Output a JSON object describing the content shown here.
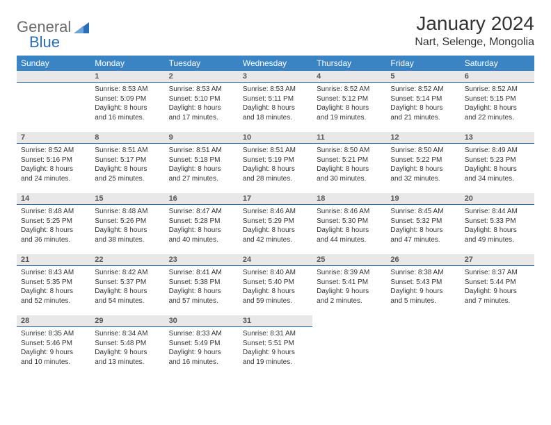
{
  "logo": {
    "text1": "General",
    "text2": "Blue"
  },
  "title": "January 2024",
  "location": "Nart, Selenge, Mongolia",
  "colors": {
    "header_bg": "#3a84c4",
    "header_text": "#ffffff",
    "daynum_bg": "#e8e8e8",
    "daynum_border": "#2a6db8",
    "body_text": "#333333",
    "logo_gray": "#6b6b6b",
    "logo_blue": "#2a6db8"
  },
  "weekdays": [
    "Sunday",
    "Monday",
    "Tuesday",
    "Wednesday",
    "Thursday",
    "Friday",
    "Saturday"
  ],
  "weeks": [
    [
      {
        "n": "",
        "sunrise": "",
        "sunset": "",
        "daylight": ""
      },
      {
        "n": "1",
        "sunrise": "Sunrise: 8:53 AM",
        "sunset": "Sunset: 5:09 PM",
        "daylight": "Daylight: 8 hours and 16 minutes."
      },
      {
        "n": "2",
        "sunrise": "Sunrise: 8:53 AM",
        "sunset": "Sunset: 5:10 PM",
        "daylight": "Daylight: 8 hours and 17 minutes."
      },
      {
        "n": "3",
        "sunrise": "Sunrise: 8:53 AM",
        "sunset": "Sunset: 5:11 PM",
        "daylight": "Daylight: 8 hours and 18 minutes."
      },
      {
        "n": "4",
        "sunrise": "Sunrise: 8:52 AM",
        "sunset": "Sunset: 5:12 PM",
        "daylight": "Daylight: 8 hours and 19 minutes."
      },
      {
        "n": "5",
        "sunrise": "Sunrise: 8:52 AM",
        "sunset": "Sunset: 5:14 PM",
        "daylight": "Daylight: 8 hours and 21 minutes."
      },
      {
        "n": "6",
        "sunrise": "Sunrise: 8:52 AM",
        "sunset": "Sunset: 5:15 PM",
        "daylight": "Daylight: 8 hours and 22 minutes."
      }
    ],
    [
      {
        "n": "7",
        "sunrise": "Sunrise: 8:52 AM",
        "sunset": "Sunset: 5:16 PM",
        "daylight": "Daylight: 8 hours and 24 minutes."
      },
      {
        "n": "8",
        "sunrise": "Sunrise: 8:51 AM",
        "sunset": "Sunset: 5:17 PM",
        "daylight": "Daylight: 8 hours and 25 minutes."
      },
      {
        "n": "9",
        "sunrise": "Sunrise: 8:51 AM",
        "sunset": "Sunset: 5:18 PM",
        "daylight": "Daylight: 8 hours and 27 minutes."
      },
      {
        "n": "10",
        "sunrise": "Sunrise: 8:51 AM",
        "sunset": "Sunset: 5:19 PM",
        "daylight": "Daylight: 8 hours and 28 minutes."
      },
      {
        "n": "11",
        "sunrise": "Sunrise: 8:50 AM",
        "sunset": "Sunset: 5:21 PM",
        "daylight": "Daylight: 8 hours and 30 minutes."
      },
      {
        "n": "12",
        "sunrise": "Sunrise: 8:50 AM",
        "sunset": "Sunset: 5:22 PM",
        "daylight": "Daylight: 8 hours and 32 minutes."
      },
      {
        "n": "13",
        "sunrise": "Sunrise: 8:49 AM",
        "sunset": "Sunset: 5:23 PM",
        "daylight": "Daylight: 8 hours and 34 minutes."
      }
    ],
    [
      {
        "n": "14",
        "sunrise": "Sunrise: 8:48 AM",
        "sunset": "Sunset: 5:25 PM",
        "daylight": "Daylight: 8 hours and 36 minutes."
      },
      {
        "n": "15",
        "sunrise": "Sunrise: 8:48 AM",
        "sunset": "Sunset: 5:26 PM",
        "daylight": "Daylight: 8 hours and 38 minutes."
      },
      {
        "n": "16",
        "sunrise": "Sunrise: 8:47 AM",
        "sunset": "Sunset: 5:28 PM",
        "daylight": "Daylight: 8 hours and 40 minutes."
      },
      {
        "n": "17",
        "sunrise": "Sunrise: 8:46 AM",
        "sunset": "Sunset: 5:29 PM",
        "daylight": "Daylight: 8 hours and 42 minutes."
      },
      {
        "n": "18",
        "sunrise": "Sunrise: 8:46 AM",
        "sunset": "Sunset: 5:30 PM",
        "daylight": "Daylight: 8 hours and 44 minutes."
      },
      {
        "n": "19",
        "sunrise": "Sunrise: 8:45 AM",
        "sunset": "Sunset: 5:32 PM",
        "daylight": "Daylight: 8 hours and 47 minutes."
      },
      {
        "n": "20",
        "sunrise": "Sunrise: 8:44 AM",
        "sunset": "Sunset: 5:33 PM",
        "daylight": "Daylight: 8 hours and 49 minutes."
      }
    ],
    [
      {
        "n": "21",
        "sunrise": "Sunrise: 8:43 AM",
        "sunset": "Sunset: 5:35 PM",
        "daylight": "Daylight: 8 hours and 52 minutes."
      },
      {
        "n": "22",
        "sunrise": "Sunrise: 8:42 AM",
        "sunset": "Sunset: 5:37 PM",
        "daylight": "Daylight: 8 hours and 54 minutes."
      },
      {
        "n": "23",
        "sunrise": "Sunrise: 8:41 AM",
        "sunset": "Sunset: 5:38 PM",
        "daylight": "Daylight: 8 hours and 57 minutes."
      },
      {
        "n": "24",
        "sunrise": "Sunrise: 8:40 AM",
        "sunset": "Sunset: 5:40 PM",
        "daylight": "Daylight: 8 hours and 59 minutes."
      },
      {
        "n": "25",
        "sunrise": "Sunrise: 8:39 AM",
        "sunset": "Sunset: 5:41 PM",
        "daylight": "Daylight: 9 hours and 2 minutes."
      },
      {
        "n": "26",
        "sunrise": "Sunrise: 8:38 AM",
        "sunset": "Sunset: 5:43 PM",
        "daylight": "Daylight: 9 hours and 5 minutes."
      },
      {
        "n": "27",
        "sunrise": "Sunrise: 8:37 AM",
        "sunset": "Sunset: 5:44 PM",
        "daylight": "Daylight: 9 hours and 7 minutes."
      }
    ],
    [
      {
        "n": "28",
        "sunrise": "Sunrise: 8:35 AM",
        "sunset": "Sunset: 5:46 PM",
        "daylight": "Daylight: 9 hours and 10 minutes."
      },
      {
        "n": "29",
        "sunrise": "Sunrise: 8:34 AM",
        "sunset": "Sunset: 5:48 PM",
        "daylight": "Daylight: 9 hours and 13 minutes."
      },
      {
        "n": "30",
        "sunrise": "Sunrise: 8:33 AM",
        "sunset": "Sunset: 5:49 PM",
        "daylight": "Daylight: 9 hours and 16 minutes."
      },
      {
        "n": "31",
        "sunrise": "Sunrise: 8:31 AM",
        "sunset": "Sunset: 5:51 PM",
        "daylight": "Daylight: 9 hours and 19 minutes."
      },
      {
        "n": "",
        "sunrise": "",
        "sunset": "",
        "daylight": ""
      },
      {
        "n": "",
        "sunrise": "",
        "sunset": "",
        "daylight": ""
      },
      {
        "n": "",
        "sunrise": "",
        "sunset": "",
        "daylight": ""
      }
    ]
  ]
}
